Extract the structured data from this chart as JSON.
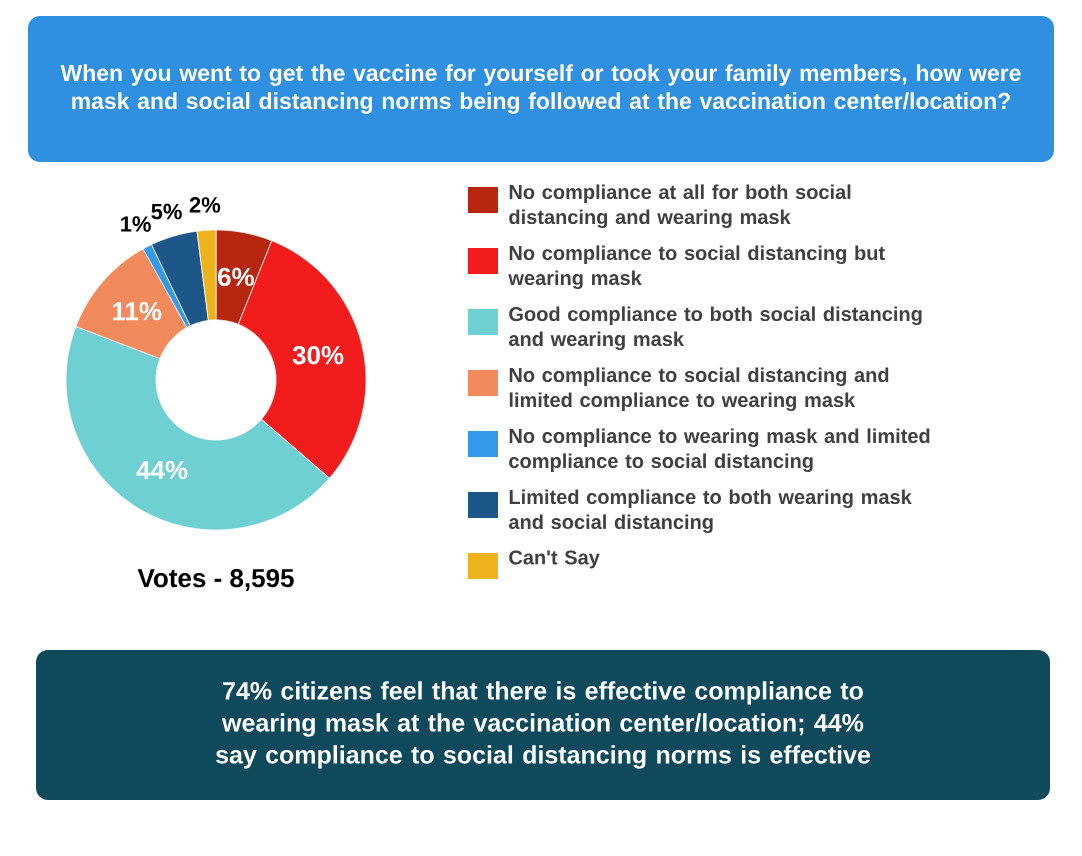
{
  "chart_data": {
    "type": "donut",
    "title": "When you went to get the vaccine for yourself or took your family members, how were mask and social distancing norms being followed at the vaccination center/location?",
    "categories": [
      "No compliance at all for both social distancing and wearing mask",
      "No compliance to social distancing but wearing mask",
      "Good compliance to both social distancing and wearing mask",
      "No compliance to social distancing and limited compliance to wearing mask",
      "No compliance to wearing mask and limited compliance to social distancing",
      "Limited compliance to both wearing mask and social distancing",
      "Can't Say"
    ],
    "values": [
      6,
      30,
      44,
      11,
      1,
      5,
      2
    ],
    "colors": [
      "#b8260f",
      "#f21c1c",
      "#6fd0d4",
      "#f28a5c",
      "#3399e8",
      "#1d5688",
      "#eeb31a"
    ],
    "value_labels": [
      "6%",
      "30%",
      "44%",
      "11%",
      "1%",
      "5%",
      "2%"
    ],
    "legend": "right",
    "annotations": [
      "Votes - 8,595",
      "74% citizens feel that there is effective compliance to wearing mask at the vaccination center/location; 44% say compliance to social distancing norms is effective"
    ]
  }
}
